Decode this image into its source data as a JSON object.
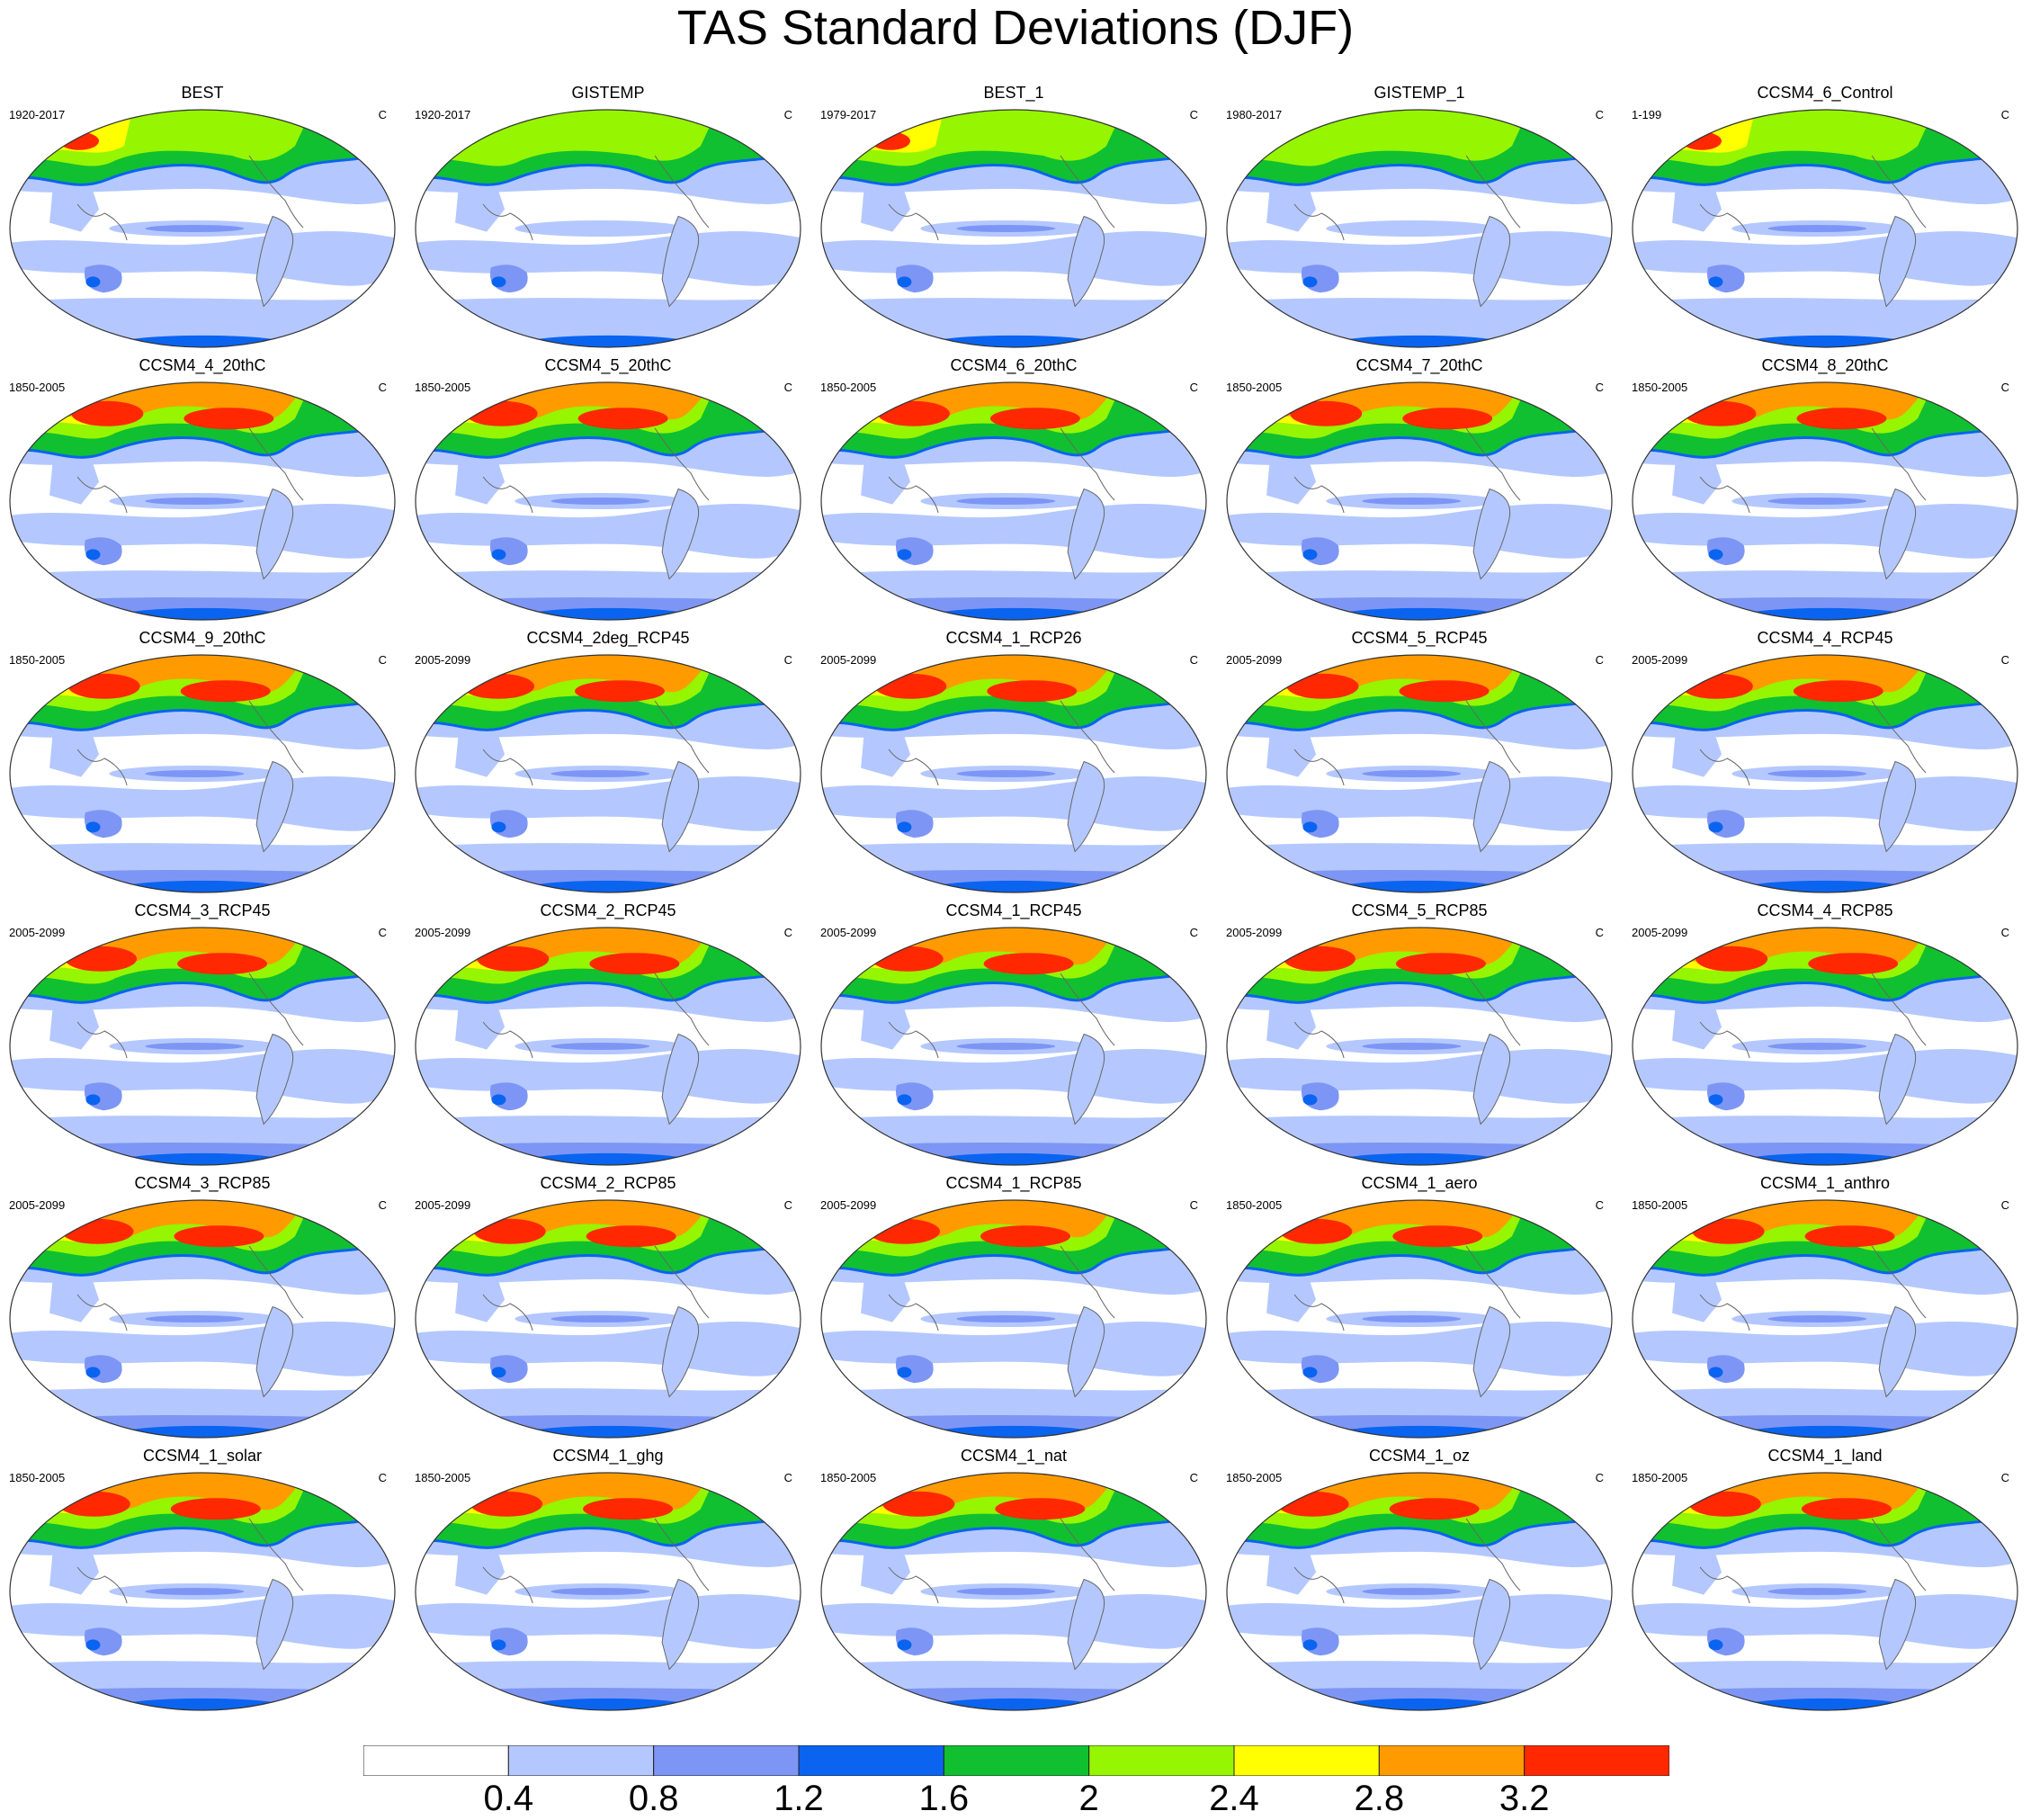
{
  "title": "TAS Standard Deviations (DJF)",
  "units": "C",
  "map_style": {
    "levels": [
      0.4,
      0.8,
      1.2,
      1.6,
      2,
      2.4,
      2.8,
      3.2
    ],
    "colors": [
      "#ffffff",
      "#b4c8ff",
      "#7d96f5",
      "#0a64f0",
      "#10c030",
      "#96f500",
      "#ffff00",
      "#ff9b00",
      "#ff2800"
    ],
    "projection": "Robinson, Pacific-centered"
  },
  "panels": [
    {
      "name": "BEST",
      "period": "1920-2017"
    },
    {
      "name": "GISTEMP",
      "period": "1920-2017"
    },
    {
      "name": "BEST_1",
      "period": "1979-2017"
    },
    {
      "name": "GISTEMP_1",
      "period": "1980-2017"
    },
    {
      "name": "CCSM4_6_Control",
      "period": "1-199"
    },
    {
      "name": "CCSM4_4_20thC",
      "period": "1850-2005"
    },
    {
      "name": "CCSM4_5_20thC",
      "period": "1850-2005"
    },
    {
      "name": "CCSM4_6_20thC",
      "period": "1850-2005"
    },
    {
      "name": "CCSM4_7_20thC",
      "period": "1850-2005"
    },
    {
      "name": "CCSM4_8_20thC",
      "period": "1850-2005"
    },
    {
      "name": "CCSM4_9_20thC",
      "period": "1850-2005"
    },
    {
      "name": "CCSM4_2deg_RCP45",
      "period": "2005-2099"
    },
    {
      "name": "CCSM4_1_RCP26",
      "period": "2005-2099"
    },
    {
      "name": "CCSM4_5_RCP45",
      "period": "2005-2099"
    },
    {
      "name": "CCSM4_4_RCP45",
      "period": "2005-2099"
    },
    {
      "name": "CCSM4_3_RCP45",
      "period": "2005-2099"
    },
    {
      "name": "CCSM4_2_RCP45",
      "period": "2005-2099"
    },
    {
      "name": "CCSM4_1_RCP45",
      "period": "2005-2099"
    },
    {
      "name": "CCSM4_5_RCP85",
      "period": "2005-2099"
    },
    {
      "name": "CCSM4_4_RCP85",
      "period": "2005-2099"
    },
    {
      "name": "CCSM4_3_RCP85",
      "period": "2005-2099"
    },
    {
      "name": "CCSM4_2_RCP85",
      "period": "2005-2099"
    },
    {
      "name": "CCSM4_1_RCP85",
      "period": "2005-2099"
    },
    {
      "name": "CCSM4_1_aero",
      "period": "1850-2005"
    },
    {
      "name": "CCSM4_1_anthro",
      "period": "1850-2005"
    },
    {
      "name": "CCSM4_1_solar",
      "period": "1850-2005"
    },
    {
      "name": "CCSM4_1_ghg",
      "period": "1850-2005"
    },
    {
      "name": "CCSM4_1_nat",
      "period": "1850-2005"
    },
    {
      "name": "CCSM4_1_oz",
      "period": "1850-2005"
    },
    {
      "name": "CCSM4_1_land",
      "period": "1850-2005"
    }
  ],
  "colorbar": {
    "labels": [
      "0.4",
      "0.8",
      "1.2",
      "1.6",
      "2",
      "2.4",
      "2.8",
      "3.2"
    ]
  }
}
